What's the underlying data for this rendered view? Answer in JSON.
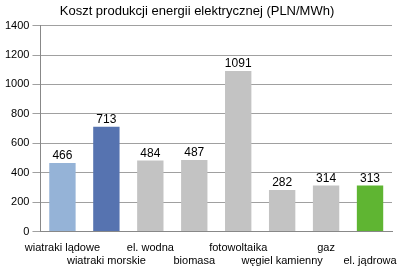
{
  "chart_data": {
    "type": "bar",
    "title": "Koszt produkcji energii elektrycznej (PLN/MWh)",
    "categories": [
      "wiatraki lądowe",
      "wiatraki morskie",
      "el. wodna",
      "biomasa",
      "fotowoltaika",
      "węgiel kamienny",
      "gaz",
      "el. jądrowa"
    ],
    "values": [
      466,
      713,
      484,
      487,
      1091,
      282,
      314,
      313
    ],
    "colors": [
      "#95b3d7",
      "#5673b0",
      "#c3c3c3",
      "#c3c3c3",
      "#c3c3c3",
      "#c3c3c3",
      "#c3c3c3",
      "#5fb532"
    ],
    "ylim": [
      0,
      1400
    ],
    "yticks": [
      0,
      200,
      400,
      600,
      800,
      1000,
      1200,
      1400
    ],
    "grid": true,
    "data_labels": true
  }
}
